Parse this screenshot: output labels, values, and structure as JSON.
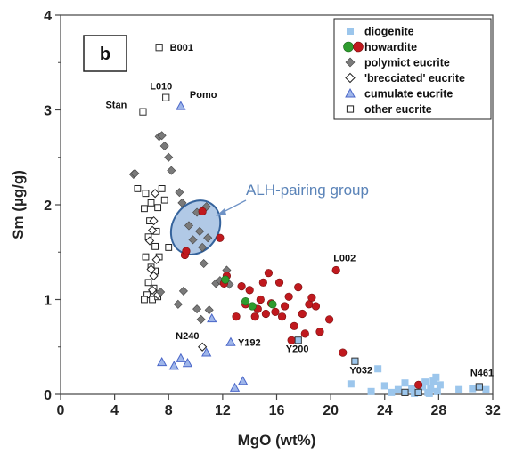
{
  "chart_data": {
    "type": "scatter",
    "panel_label": "b",
    "xlabel": "MgO (wt%)",
    "ylabel": "Sm (µg/g)",
    "xlim": [
      0,
      32
    ],
    "ylim": [
      0,
      4
    ],
    "xticks": [
      0,
      4,
      8,
      12,
      16,
      20,
      24,
      28,
      32
    ],
    "yticks": [
      0,
      1,
      2,
      3,
      4
    ],
    "grid": false,
    "legend_position": "top-right",
    "series": [
      {
        "name": "diogenite",
        "marker": "square-filled",
        "color": "#9cc6ec",
        "points": [
          [
            21.5,
            0.11
          ],
          [
            23.0,
            0.03
          ],
          [
            23.5,
            0.27
          ],
          [
            24.0,
            0.09
          ],
          [
            24.5,
            0.02
          ],
          [
            25.0,
            0.05
          ],
          [
            25.5,
            0.12
          ],
          [
            26.0,
            0.06
          ],
          [
            26.5,
            0.02
          ],
          [
            26.8,
            0.08
          ],
          [
            27.0,
            0.13
          ],
          [
            27.2,
            0.02
          ],
          [
            27.4,
            0.06
          ],
          [
            27.6,
            0.14
          ],
          [
            27.8,
            0.18
          ],
          [
            27.9,
            0.03
          ],
          [
            28.1,
            0.1
          ],
          [
            29.5,
            0.05
          ],
          [
            30.5,
            0.06
          ],
          [
            31.5,
            0.05
          ],
          [
            26.2,
            0.01
          ],
          [
            27.3,
            0.01
          ]
        ]
      },
      {
        "name": "howardite",
        "marker": "circle",
        "color": "#c0191e",
        "color_secondary": "#2e9c2e",
        "points": [
          [
            9.2,
            1.47
          ],
          [
            9.3,
            1.51
          ],
          [
            10.5,
            1.93
          ],
          [
            11.8,
            1.65
          ],
          [
            12.1,
            1.17
          ],
          [
            12.3,
            1.25
          ],
          [
            13.0,
            0.82
          ],
          [
            13.4,
            1.14
          ],
          [
            13.7,
            0.95
          ],
          [
            14.0,
            1.1
          ],
          [
            14.4,
            0.82
          ],
          [
            14.6,
            0.9
          ],
          [
            14.8,
            1.0
          ],
          [
            15.0,
            1.18
          ],
          [
            15.2,
            0.85
          ],
          [
            15.4,
            1.28
          ],
          [
            15.6,
            0.96
          ],
          [
            15.9,
            0.87
          ],
          [
            16.2,
            1.18
          ],
          [
            16.4,
            0.82
          ],
          [
            16.6,
            0.93
          ],
          [
            16.9,
            1.03
          ],
          [
            17.1,
            0.57
          ],
          [
            17.3,
            0.72
          ],
          [
            17.6,
            1.13
          ],
          [
            17.9,
            0.85
          ],
          [
            18.1,
            0.64
          ],
          [
            18.4,
            0.95
          ],
          [
            18.6,
            1.02
          ],
          [
            18.9,
            0.93
          ],
          [
            19.2,
            0.66
          ],
          [
            19.9,
            0.79
          ],
          [
            20.4,
            1.31
          ],
          [
            20.9,
            0.44
          ],
          [
            26.5,
            0.1
          ]
        ],
        "green_points": [
          [
            12.2,
            1.21
          ],
          [
            13.7,
            0.98
          ],
          [
            14.2,
            0.93
          ],
          [
            15.7,
            0.95
          ]
        ]
      },
      {
        "name": "polymict eucrite",
        "marker": "diamond-filled",
        "color": "#7a7a7a",
        "points": [
          [
            5.4,
            2.32
          ],
          [
            5.5,
            2.33
          ],
          [
            7.3,
            2.72
          ],
          [
            7.5,
            2.73
          ],
          [
            7.7,
            2.62
          ],
          [
            8.0,
            2.5
          ],
          [
            8.2,
            2.36
          ],
          [
            8.8,
            2.13
          ],
          [
            9.0,
            2.02
          ],
          [
            9.5,
            1.78
          ],
          [
            9.8,
            1.63
          ],
          [
            10.1,
            1.92
          ],
          [
            10.3,
            1.72
          ],
          [
            10.5,
            1.55
          ],
          [
            10.6,
            1.38
          ],
          [
            10.8,
            1.98
          ],
          [
            10.9,
            1.65
          ],
          [
            11.5,
            1.17
          ],
          [
            11.8,
            1.2
          ],
          [
            12.3,
            1.31
          ],
          [
            12.5,
            1.16
          ],
          [
            8.7,
            0.95
          ],
          [
            9.1,
            1.09
          ],
          [
            10.1,
            0.9
          ],
          [
            10.4,
            0.79
          ],
          [
            11.0,
            0.89
          ],
          [
            7.4,
            1.08
          ]
        ]
      },
      {
        "name": "'brecciated' eucrite",
        "marker": "diamond-open",
        "color": "#222222",
        "points": [
          [
            6.6,
            1.62
          ],
          [
            6.8,
            1.73
          ],
          [
            6.9,
            1.83
          ],
          [
            7.0,
            2.12
          ],
          [
            7.1,
            1.42
          ],
          [
            7.2,
            1.05
          ],
          [
            6.7,
            1.32
          ],
          [
            6.9,
            1.25
          ],
          [
            6.8,
            1.1
          ],
          [
            10.5,
            0.5
          ]
        ]
      },
      {
        "name": "cumulate eucrite",
        "marker": "triangle",
        "color": "#4a66c8",
        "points": [
          [
            8.9,
            3.04
          ],
          [
            7.5,
            0.34
          ],
          [
            8.4,
            0.3
          ],
          [
            8.9,
            0.38
          ],
          [
            9.4,
            0.33
          ],
          [
            10.8,
            0.44
          ],
          [
            11.2,
            0.8
          ],
          [
            12.6,
            0.55
          ],
          [
            12.9,
            0.07
          ],
          [
            13.5,
            0.14
          ]
        ]
      },
      {
        "name": "other eucrite",
        "marker": "square-open",
        "color": "#222222",
        "points": [
          [
            7.3,
            3.66
          ],
          [
            7.8,
            3.13
          ],
          [
            6.1,
            2.98
          ],
          [
            5.7,
            2.17
          ],
          [
            6.3,
            2.12
          ],
          [
            6.7,
            2.02
          ],
          [
            7.2,
            1.97
          ],
          [
            7.5,
            2.17
          ],
          [
            7.7,
            2.05
          ],
          [
            6.2,
            1.96
          ],
          [
            6.6,
            1.83
          ],
          [
            7.1,
            1.72
          ],
          [
            6.5,
            1.66
          ],
          [
            7.0,
            1.56
          ],
          [
            6.3,
            1.45
          ],
          [
            6.7,
            1.34
          ],
          [
            7.0,
            1.3
          ],
          [
            6.5,
            1.18
          ],
          [
            6.9,
            1.12
          ],
          [
            6.4,
            1.05
          ],
          [
            6.8,
            1.0
          ],
          [
            7.2,
            1.03
          ],
          [
            6.2,
            1.0
          ],
          [
            8.0,
            1.55
          ],
          [
            7.3,
            1.45
          ]
        ]
      }
    ],
    "labeled_points": [
      {
        "label": "B001",
        "x": 7.3,
        "y": 3.66,
        "marker": "square-open"
      },
      {
        "label": "L010",
        "x": 7.8,
        "y": 3.13,
        "marker": "square-open"
      },
      {
        "label": "Pomo",
        "x": 8.9,
        "y": 3.04,
        "marker": "triangle"
      },
      {
        "label": "Stan",
        "x": 6.1,
        "y": 2.98,
        "marker": "square-open"
      },
      {
        "label": "L002",
        "x": 20.4,
        "y": 1.31,
        "marker": "circle"
      },
      {
        "label": "N240",
        "x": 10.5,
        "y": 0.5,
        "marker": "diamond-open"
      },
      {
        "label": "Y192",
        "x": 12.6,
        "y": 0.55,
        "marker": "triangle"
      },
      {
        "label": "Y200",
        "x": 17.6,
        "y": 0.57,
        "marker": "square-open"
      },
      {
        "label": "Y032",
        "x": 21.8,
        "y": 0.35,
        "marker": "square-open"
      },
      {
        "label": "N461",
        "x": 31.0,
        "y": 0.08,
        "marker": "square-open"
      }
    ],
    "extra_boxed_points": [
      [
        25.5,
        0.02
      ],
      [
        26.5,
        0.02
      ]
    ],
    "annotation": {
      "text": "ALH-pairing group",
      "ellipse_center": [
        10.0,
        1.76
      ],
      "ellipse_radii": [
        1.7,
        0.3
      ],
      "ellipse_fill": "#a9c3e3",
      "ellipse_stroke": "#35639c"
    }
  }
}
